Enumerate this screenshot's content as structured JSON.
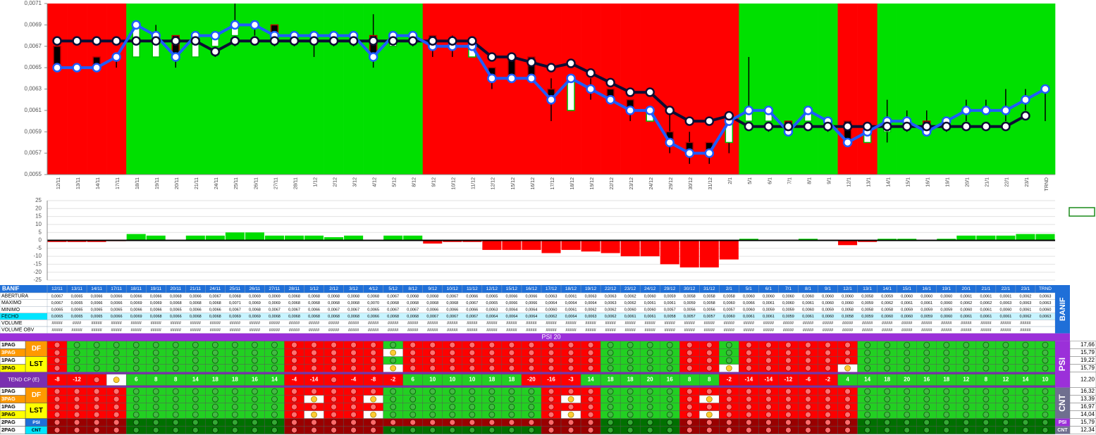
{
  "chart_data": [
    {
      "type": "candlestick",
      "categories": [
        "12/11",
        "13/11",
        "14/11",
        "17/11",
        "18/11",
        "19/11",
        "20/11",
        "21/11",
        "24/11",
        "25/11",
        "26/11",
        "27/11",
        "28/11",
        "1/12",
        "2/12",
        "3/12",
        "4/12",
        "5/12",
        "8/12",
        "9/12",
        "10/12",
        "11/12",
        "12/12",
        "15/12",
        "16/12",
        "17/12",
        "18/12",
        "19/12",
        "22/12",
        "23/12",
        "24/12",
        "29/12",
        "30/12",
        "31/12",
        "2/1",
        "5/1",
        "6/1",
        "7/1",
        "8/1",
        "9/1",
        "12/1",
        "13/1",
        "14/1",
        "15/1",
        "16/1",
        "19/1",
        "20/1",
        "21/1",
        "22/1",
        "23/1",
        "TRND"
      ],
      "open": [
        0.0067,
        0.0065,
        0.0066,
        0.0066,
        0.0066,
        0.0066,
        0.0068,
        0.0066,
        0.0067,
        0.0068,
        0.0069,
        0.0069,
        0.0068,
        0.0068,
        0.0068,
        0.0068,
        0.0068,
        0.0067,
        0.0068,
        0.0068,
        0.0067,
        0.0066,
        0.0065,
        0.0066,
        0.0066,
        0.0063,
        0.0061,
        0.0063,
        0.0063,
        0.0062,
        0.006,
        0.0059,
        0.0058,
        0.0058,
        0.0058,
        0.006,
        0.006,
        0.006,
        0.006,
        0.006,
        0.006,
        0.0058,
        0.0059,
        0.006,
        0.006,
        0.006,
        0.0061,
        0.0061,
        0.0061,
        0.0062,
        0.0063
      ],
      "high": [
        0.0067,
        0.0065,
        0.0066,
        0.0066,
        0.0069,
        0.0069,
        0.0068,
        0.0068,
        0.0068,
        0.0071,
        0.0069,
        0.0069,
        0.0068,
        0.0068,
        0.0068,
        0.0068,
        0.007,
        0.0068,
        0.0068,
        0.0068,
        0.0068,
        0.0067,
        0.0065,
        0.0066,
        0.0066,
        0.0064,
        0.0064,
        0.0064,
        0.0063,
        0.0062,
        0.0061,
        0.0061,
        0.0059,
        0.0058,
        0.006,
        0.0066,
        0.0061,
        0.006,
        0.0061,
        0.006,
        0.006,
        0.0059,
        0.0062,
        0.0061,
        0.0061,
        0.006,
        0.0062,
        0.0062,
        0.0063,
        0.0063,
        0.0063
      ],
      "low": [
        0.0065,
        0.0065,
        0.0065,
        0.0065,
        0.0066,
        0.0066,
        0.0065,
        0.0066,
        0.0066,
        0.0067,
        0.0068,
        0.0067,
        0.0067,
        0.0066,
        0.0067,
        0.0067,
        0.0065,
        0.0067,
        0.0067,
        0.0066,
        0.0066,
        0.0066,
        0.0063,
        0.0064,
        0.0064,
        0.006,
        0.0061,
        0.0062,
        0.0062,
        0.006,
        0.006,
        0.0057,
        0.0056,
        0.0056,
        0.0057,
        0.006,
        0.0059,
        0.0059,
        0.006,
        0.0059,
        0.0058,
        0.0058,
        0.0058,
        0.0059,
        0.0059,
        0.0059,
        0.006,
        0.0061,
        0.006,
        0.0061,
        0.006
      ],
      "close": [
        0.0065,
        0.0065,
        0.0065,
        0.0066,
        0.0069,
        0.0068,
        0.0066,
        0.0068,
        0.0068,
        0.0069,
        0.0069,
        0.0068,
        0.0068,
        0.0068,
        0.0068,
        0.0068,
        0.0066,
        0.0068,
        0.0068,
        0.0067,
        0.0067,
        0.0067,
        0.0064,
        0.0064,
        0.0064,
        0.0062,
        0.0064,
        0.0063,
        0.0062,
        0.0061,
        0.0061,
        0.0058,
        0.0057,
        0.0057,
        0.006,
        0.0061,
        0.0061,
        0.0059,
        0.0061,
        0.006,
        0.0058,
        0.0059,
        0.006,
        0.006,
        0.0059,
        0.006,
        0.0061,
        0.0061,
        0.0061,
        0.0062,
        0.0063
      ],
      "average": [
        0.00675,
        0.00675,
        0.00675,
        0.00675,
        0.00675,
        0.00675,
        0.00675,
        0.00675,
        0.00665,
        0.00675,
        0.00675,
        0.00675,
        0.00675,
        0.00675,
        0.00675,
        0.00675,
        0.00675,
        0.00675,
        0.00675,
        0.00675,
        0.00675,
        0.00675,
        0.0066,
        0.0066,
        0.00655,
        0.0065,
        0.00654,
        0.00645,
        0.00636,
        0.00627,
        0.00627,
        0.0061,
        0.006,
        0.006,
        0.00605,
        0.00595,
        0.00595,
        0.00595,
        0.00595,
        0.00595,
        0.00595,
        0.00595,
        0.00595,
        0.00595,
        0.00595,
        0.00595,
        0.00595,
        0.00595,
        0.00595,
        0.00605,
        null
      ],
      "bands": "RRRRGGGGGGGGGGGGGGGRRRRRRRRRRRRRRRRGGGGGRRGGGGGGGGG",
      "band_colors": {
        "R": "#ff0000",
        "G": "#00e000"
      },
      "close_color": "#1f5cff",
      "average_color": "#0d0d33",
      "ylim": [
        0.0055,
        0.0071
      ],
      "yticks": [
        {
          "value": 0.0055,
          "label": "0,0055"
        },
        {
          "value": 0.0057,
          "label": "0,0057"
        },
        {
          "value": 0.0059,
          "label": "0,0059"
        },
        {
          "value": 0.0061,
          "label": "0,0061"
        },
        {
          "value": 0.0063,
          "label": "0,0063"
        },
        {
          "value": 0.0065,
          "label": "0,0065"
        },
        {
          "value": 0.0067,
          "label": "0,0067"
        },
        {
          "value": 0.0069,
          "label": "0,0069"
        },
        {
          "value": 0.0071,
          "label": "0,0071"
        }
      ]
    },
    {
      "type": "bar",
      "values": [
        -1,
        -1,
        -1,
        -0.5,
        4,
        3,
        0,
        3,
        3,
        5,
        5,
        3,
        3,
        3,
        2,
        3,
        0,
        3,
        3,
        -2,
        -1,
        -1,
        -6,
        -6,
        -6,
        -8,
        -6,
        -7,
        -8,
        -10,
        -10,
        -15,
        -17,
        -17,
        -12,
        1,
        0,
        0,
        1,
        0,
        -3,
        -1,
        1,
        1,
        0,
        1,
        3,
        3,
        3,
        4,
        4
      ],
      "positive_color": "#00dd00",
      "negative_color": "#ff0000",
      "ylim": [
        -25,
        25
      ],
      "yticks": [
        25,
        20,
        15,
        10,
        5,
        0,
        -5,
        -10,
        -15,
        -20,
        -25
      ],
      "grid": true
    }
  ],
  "table": {
    "title": "BANIF",
    "side_label": "BANIF",
    "rows": [
      {
        "label": "ABERTURA",
        "cells": [
          "0,0067",
          "0,0065",
          "0,0066",
          "0,0066",
          "0,0066",
          "0,0066",
          "0,0068",
          "0,0066",
          "0,0067",
          "0,0068",
          "0,0069",
          "0,0069",
          "0,0068",
          "0,0068",
          "0,0068",
          "0,0068",
          "0,0068",
          "0,0067",
          "0,0068",
          "0,0068",
          "0,0067",
          "0,0066",
          "0,0065",
          "0,0066",
          "0,0066",
          "0,0063",
          "0,0061",
          "0,0063",
          "0,0063",
          "0,0062",
          "0,0060",
          "0,0059",
          "0,0058",
          "0,0058",
          "0,0058",
          "0,0060",
          "0,0060",
          "0,0060",
          "0,0060",
          "0,0060",
          "0,0060",
          "0,0058",
          "0,0059",
          "0,0060",
          "0,0060",
          "0,0060",
          "0,0061",
          "0,0061",
          "0,0061",
          "0,0062",
          "0,0063"
        ]
      },
      {
        "label": "MAXIMO",
        "cells": [
          "0,0067",
          "0,0065",
          "0,0066",
          "0,0066",
          "0,0069",
          "0,0069",
          "0,0068",
          "0,0068",
          "0,0068",
          "0,0071",
          "0,0069",
          "0,0069",
          "0,0068",
          "0,0068",
          "0,0068",
          "0,0068",
          "0,0070",
          "0,0068",
          "0,0068",
          "0,0068",
          "0,0068",
          "0,0067",
          "0,0065",
          "0,0066",
          "0,0066",
          "0,0064",
          "0,0064",
          "0,0064",
          "0,0063",
          "0,0062",
          "0,0061",
          "0,0061",
          "0,0059",
          "0,0058",
          "0,0060",
          "0,0066",
          "0,0061",
          "0,0060",
          "0,0061",
          "0,0060",
          "0,0060",
          "0,0059",
          "0,0062",
          "0,0061",
          "0,0061",
          "0,0060",
          "0,0062",
          "0,0062",
          "0,0063",
          "0,0063",
          "0,0063"
        ]
      },
      {
        "label": "MINIMO",
        "cells": [
          "0,0065",
          "0,0065",
          "0,0065",
          "0,0065",
          "0,0066",
          "0,0066",
          "0,0065",
          "0,0066",
          "0,0066",
          "0,0067",
          "0,0068",
          "0,0067",
          "0,0067",
          "0,0066",
          "0,0067",
          "0,0067",
          "0,0065",
          "0,0067",
          "0,0067",
          "0,0066",
          "0,0066",
          "0,0066",
          "0,0063",
          "0,0064",
          "0,0064",
          "0,0060",
          "0,0061",
          "0,0062",
          "0,0062",
          "0,0060",
          "0,0060",
          "0,0057",
          "0,0056",
          "0,0056",
          "0,0057",
          "0,0060",
          "0,0059",
          "0,0059",
          "0,0060",
          "0,0059",
          "0,0058",
          "0,0058",
          "0,0058",
          "0,0059",
          "0,0059",
          "0,0059",
          "0,0060",
          "0,0061",
          "0,0060",
          "0,0061",
          "0,0060"
        ]
      },
      {
        "label": "FECHO",
        "cells": [
          "0,0065",
          "0,0065",
          "0,0065",
          "0,0066",
          "0,0069",
          "0,0068",
          "0,0066",
          "0,0068",
          "0,0068",
          "0,0069",
          "0,0069",
          "0,0068",
          "0,0068",
          "0,0068",
          "0,0068",
          "0,0068",
          "0,0066",
          "0,0068",
          "0,0068",
          "0,0067",
          "0,0067",
          "0,0067",
          "0,0064",
          "0,0064",
          "0,0064",
          "0,0062",
          "0,0064",
          "0,0063",
          "0,0062",
          "0,0061",
          "0,0061",
          "0,0058",
          "0,0057",
          "0,0057",
          "0,0060",
          "0,0061",
          "0,0061",
          "0,0059",
          "0,0061",
          "0,0060",
          "0,0058",
          "0,0059",
          "0,0060",
          "0,0060",
          "0,0059",
          "0,0060",
          "0,0061",
          "0,0061",
          "0,0061",
          "0,0062",
          "0,0063"
        ]
      },
      {
        "label": "VOLUME",
        "cells": [
          "#####",
          "####",
          "#####",
          "#####",
          "#####",
          "#####",
          "#####",
          "#####",
          "#####",
          "#####",
          "#####",
          "#####",
          "#####",
          "#####",
          "#####",
          "#####",
          "#####",
          "#####",
          "#####",
          "#####",
          "#####",
          "#####",
          "#####",
          "#####",
          "#####",
          "#####",
          "#####",
          "#####",
          "#####",
          "#####",
          "#####",
          "#####",
          "#####",
          "#####",
          "#####",
          "#####",
          "#####",
          "#####",
          "#####",
          "#####",
          "#####",
          "#####",
          "#####",
          "#####",
          "#####",
          "#####",
          "#####",
          "#####",
          "#####",
          "#####",
          null
        ]
      },
      {
        "label": "VOLUME OBV",
        "cells": [
          "#####",
          "#####",
          "#####",
          "#####",
          "#####",
          "#####",
          "#####",
          "#####",
          "#####",
          "#####",
          "#####",
          "#####",
          "#####",
          "#####",
          "#####",
          "#####",
          "#####",
          "#####",
          "#####",
          "#####",
          "#####",
          "#####",
          "#####",
          "#####",
          "#####",
          "#####",
          "#####",
          "#####",
          "#####",
          "#####",
          "#####",
          "#####",
          "#####",
          "#####",
          "#####",
          "#####",
          "#####",
          "#####",
          "#####",
          "#####",
          "#####",
          "#####",
          "#####",
          "#####",
          "#####",
          "#####",
          "#####",
          "#####",
          "#####",
          "#####",
          null
        ]
      }
    ]
  },
  "signals": {
    "title": "PSI 20",
    "psi": {
      "side_label": "PSI",
      "groups": [
        {
          "label": "DF",
          "rows": [
            {
              "label": "1PAG",
              "colors": "RGGGGGGGGGGGRRRRRGRRRRRRRRRRGGGGRRGRRRRRRGGGGGGGGGG",
              "total": "17,66"
            },
            {
              "label": "3PAG",
              "colors": "RGGGGGGGGGGGRRRRRYRRRRRRRRRRGGGGRRGRRRRRRGGGGGGGGGG",
              "total": "15,79"
            }
          ]
        },
        {
          "label": "LST",
          "rows": [
            {
              "label": "1PAG",
              "colors": "RGGGGGGGGGGGRRRRRGRRRRRRRRRRGGGGRRGRRRRRRGGGGGGGGGG",
              "total": "19,22"
            },
            {
              "label": "3PAG",
              "colors": "RGGGGGGGGGGGRRRRRYRRRRRRRRRRGGGGRRYRRRRRYGGGGGGGGGG",
              "total": "15,79"
            }
          ]
        }
      ]
    },
    "trend": {
      "label": "TEND CP (E)",
      "values": [
        -8,
        -12,
        null,
        null,
        6,
        8,
        8,
        14,
        18,
        18,
        16,
        14,
        -4,
        -14,
        null,
        -4,
        -8,
        -2,
        6,
        10,
        10,
        10,
        18,
        18,
        -20,
        -16,
        -3,
        14,
        18,
        18,
        20,
        16,
        8,
        8,
        -2,
        -14,
        -14,
        -12,
        -6,
        -2,
        4,
        14,
        18,
        20,
        16,
        18,
        12,
        8,
        12,
        14,
        10
      ],
      "colors": "RRRYGGGGGGGGRRRRRRGGGGGGRRRGGGGGGGRRRRRRGGGGGGGGGGG",
      "total": "12,20"
    },
    "cnt": {
      "side_label": "CNT",
      "groups": [
        {
          "label": "DF",
          "rows": [
            {
              "label": "1PAG",
              "colors": "RRRRGGGGGGGGRRRRRGGGGGGGGRRRGGGGRRRRRRRRRGGGGGGGGGG",
              "total": "16,32"
            },
            {
              "label": "3PAG",
              "colors": "RRRRGGGGGGGGRYRRYGGGGGGGGRYRGGGGRYRRRRRRRGGGGGGGGGG",
              "total": "13,39"
            }
          ]
        },
        {
          "label": "LST",
          "rows": [
            {
              "label": "1PAG",
              "colors": "RRRRGGGGGGGGRRRRRGGGGGGGGRRRGGGGRRRRRRRRRGGGGGGGGGG",
              "total": "16,97"
            },
            {
              "label": "3PAG",
              "colors": "RRRRGGGGGGGGRYRRYGGGGGGGGRYRGGGGRYRRRRRRRGGGGGGGGGG",
              "total": "14,04"
            }
          ]
        }
      ]
    },
    "summary": [
      {
        "label": "2PAG",
        "tag": "PSI",
        "colors": "RRRRGGGGGGGGRRRRRRRRRRRRRRRRGGGGRRRRRRRRRGGGGGGGGGG",
        "total": "15,79",
        "side_label": "PSI"
      },
      {
        "label": "2PAG",
        "tag": "CNT",
        "colors": "RRRRGGGGGGGGRRRRRGGGGGGGGRRRGGGGRRRRRRRRRGGGGGGGGGG",
        "total": "12,34",
        "side_label": "CNT"
      }
    ]
  }
}
